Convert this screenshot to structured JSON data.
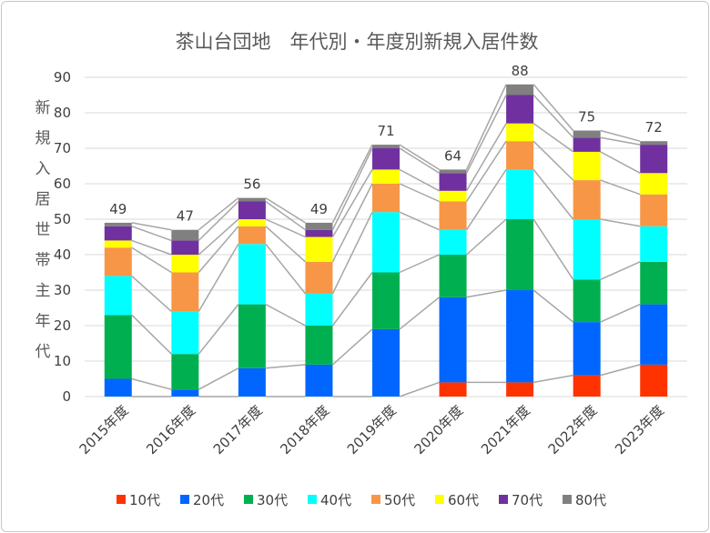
{
  "chart_data": {
    "type": "bar",
    "stacked": true,
    "title": "茶山台団地　年代別・年度別新規入居件数",
    "ylabel": "新規入居世帯主年代",
    "xlabel": "",
    "ylim": [
      0,
      90
    ],
    "yticks": [
      0,
      10,
      20,
      30,
      40,
      50,
      60,
      70,
      80,
      90
    ],
    "grid": true,
    "legend_position": "bottom",
    "categories": [
      "2015年度",
      "2016年度",
      "2017年度",
      "2018年度",
      "2019年度",
      "2020年度",
      "2021年度",
      "2022年度",
      "2023年度"
    ],
    "totals": [
      49,
      47,
      56,
      49,
      71,
      64,
      88,
      75,
      72
    ],
    "series": [
      {
        "name": "10代",
        "color": "#ff3300",
        "values": [
          0,
          0,
          0,
          0,
          0,
          4,
          4,
          6,
          9
        ]
      },
      {
        "name": "20代",
        "color": "#0066ff",
        "values": [
          5,
          2,
          8,
          9,
          19,
          24,
          26,
          15,
          17
        ]
      },
      {
        "name": "30代",
        "color": "#00b050",
        "values": [
          18,
          10,
          18,
          11,
          16,
          12,
          20,
          12,
          12
        ]
      },
      {
        "name": "40代",
        "color": "#00ffff",
        "values": [
          11,
          12,
          17,
          9,
          17,
          7,
          14,
          17,
          10
        ]
      },
      {
        "name": "50代",
        "color": "#f79646",
        "values": [
          8,
          11,
          5,
          9,
          8,
          8,
          8,
          11,
          9
        ]
      },
      {
        "name": "60代",
        "color": "#ffff00",
        "values": [
          2,
          5,
          2,
          7,
          4,
          3,
          5,
          8,
          6
        ]
      },
      {
        "name": "70代",
        "color": "#7030a0",
        "values": [
          4,
          4,
          5,
          2,
          6,
          5,
          8,
          4,
          8
        ]
      },
      {
        "name": "80代",
        "color": "#808080",
        "values": [
          1,
          3,
          1,
          2,
          1,
          1,
          3,
          2,
          1
        ]
      }
    ]
  }
}
